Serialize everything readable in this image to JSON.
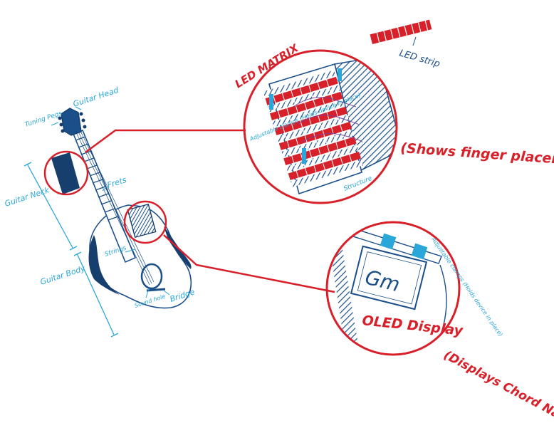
{
  "colors": {
    "red": "#d8202a",
    "navy": "#1a4f8a",
    "dark_navy": "#163f6e",
    "light_blue": "#2aa7d8",
    "background": "#ffffff"
  },
  "labels": {
    "tuning_pegs": "Tuning Pegs",
    "guitar_head": "Guitar Head",
    "frets": "Frets",
    "guitar_neck": "Guitar Neck",
    "strings": "Strings",
    "guitar_body": "Guitar Body",
    "sound_hole": "Sound hole",
    "bridge": "Bridge"
  },
  "led_detail": {
    "title": "LED MATRIX",
    "strip_label": "LED strip",
    "clamps_label": "Adjustable clamps (Holds device in place)",
    "structure_label": "Structure",
    "caption": "(Shows finger placement)"
  },
  "oled_detail": {
    "title": "OLED Display",
    "screen_text": "Gm",
    "clamps_label": "Adjustable clamps (Holds device in place)",
    "caption": "(Displays Chord Name)"
  }
}
